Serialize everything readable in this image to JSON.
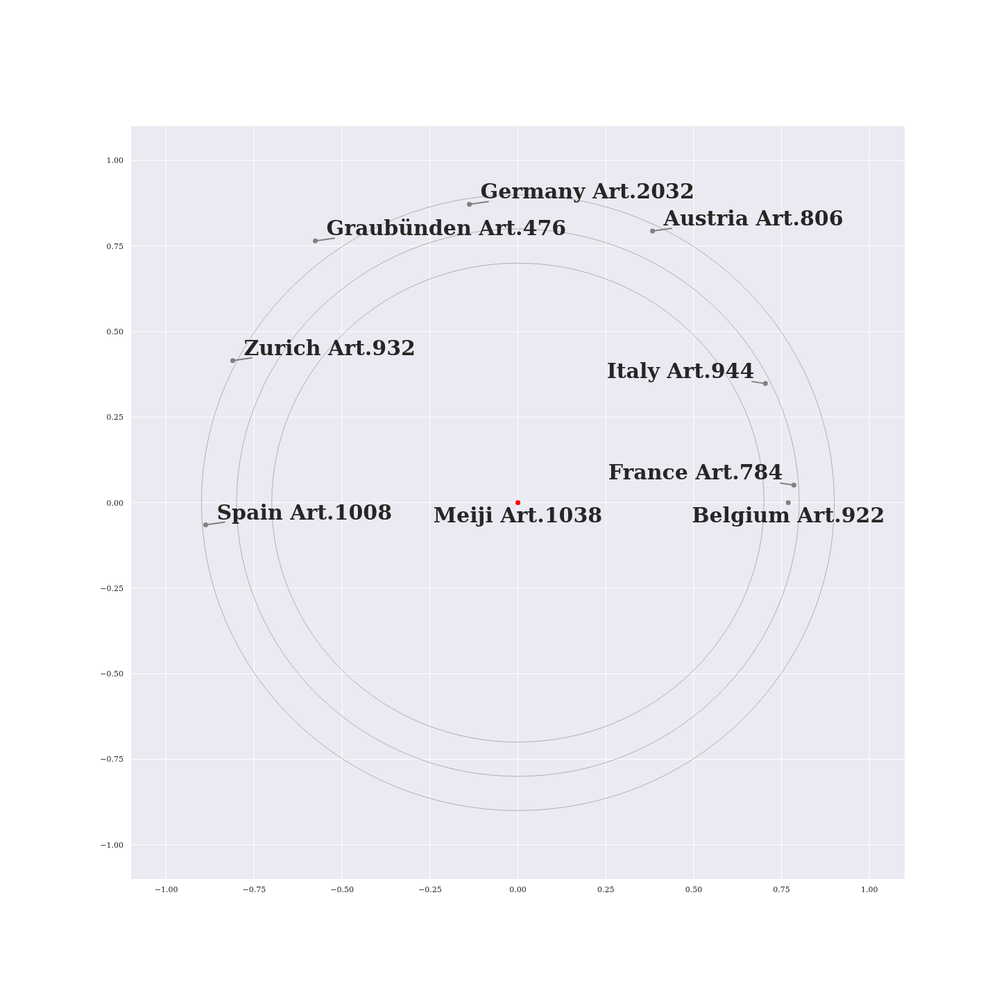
{
  "chart_data": {
    "type": "scatter",
    "xlim": [
      -1.1,
      1.1
    ],
    "ylim": [
      -1.1,
      1.1
    ],
    "xticks": [
      {
        "value": -1,
        "label": "−1.00"
      },
      {
        "value": -0.75,
        "label": "−0.75"
      },
      {
        "value": -0.5,
        "label": "−0.50"
      },
      {
        "value": -0.25,
        "label": "−0.25"
      },
      {
        "value": 0,
        "label": "0.00"
      },
      {
        "value": 0.25,
        "label": "0.25"
      },
      {
        "value": 0.5,
        "label": "0.50"
      },
      {
        "value": 0.75,
        "label": "0.75"
      },
      {
        "value": 1,
        "label": "1.00"
      }
    ],
    "yticks": [
      {
        "value": -1,
        "label": "−1.00"
      },
      {
        "value": -0.75,
        "label": "−0.75"
      },
      {
        "value": -0.5,
        "label": "−0.50"
      },
      {
        "value": -0.25,
        "label": "−0.25"
      },
      {
        "value": 0,
        "label": "0.00"
      },
      {
        "value": 0.25,
        "label": "0.25"
      },
      {
        "value": 0.5,
        "label": "0.50"
      },
      {
        "value": 0.75,
        "label": "0.75"
      },
      {
        "value": 1,
        "label": "1.00"
      }
    ],
    "grid": true,
    "series": [
      {
        "marker": "circle",
        "x": [
          0,
          -0.138,
          -0.576,
          0.383,
          -0.811,
          0.704,
          0.785,
          0.769,
          -0.888
        ],
        "values": [
          0,
          0.872,
          0.765,
          0.794,
          0.415,
          0.348,
          0.051,
          0,
          -0.065
        ],
        "colors": [
          "#ff0000",
          "#808080",
          "#808080",
          "#808080",
          "#808080",
          "#808080",
          "#808080",
          "#808080",
          "#808080"
        ]
      }
    ],
    "annotations": [
      {
        "text": "Meiji Art.1038",
        "x": 0,
        "y": 0
      },
      {
        "text": "Germany Art.2032",
        "x": -0.138,
        "y": 0.872
      },
      {
        "text": "Graubünden Art.476",
        "x": -0.576,
        "y": 0.765
      },
      {
        "text": "Austria Art.806",
        "x": 0.383,
        "y": 0.794
      },
      {
        "text": "Zurich Art.932",
        "x": -0.811,
        "y": 0.415
      },
      {
        "text": "Italy Art.944",
        "x": 0.704,
        "y": 0.348
      },
      {
        "text": "France Art.784",
        "x": 0.785,
        "y": 0.051
      },
      {
        "text": "Belgium Art.922",
        "x": 0.769,
        "y": 0
      },
      {
        "text": "Spain Art.1008",
        "x": -0.888,
        "y": -0.065
      }
    ]
  }
}
